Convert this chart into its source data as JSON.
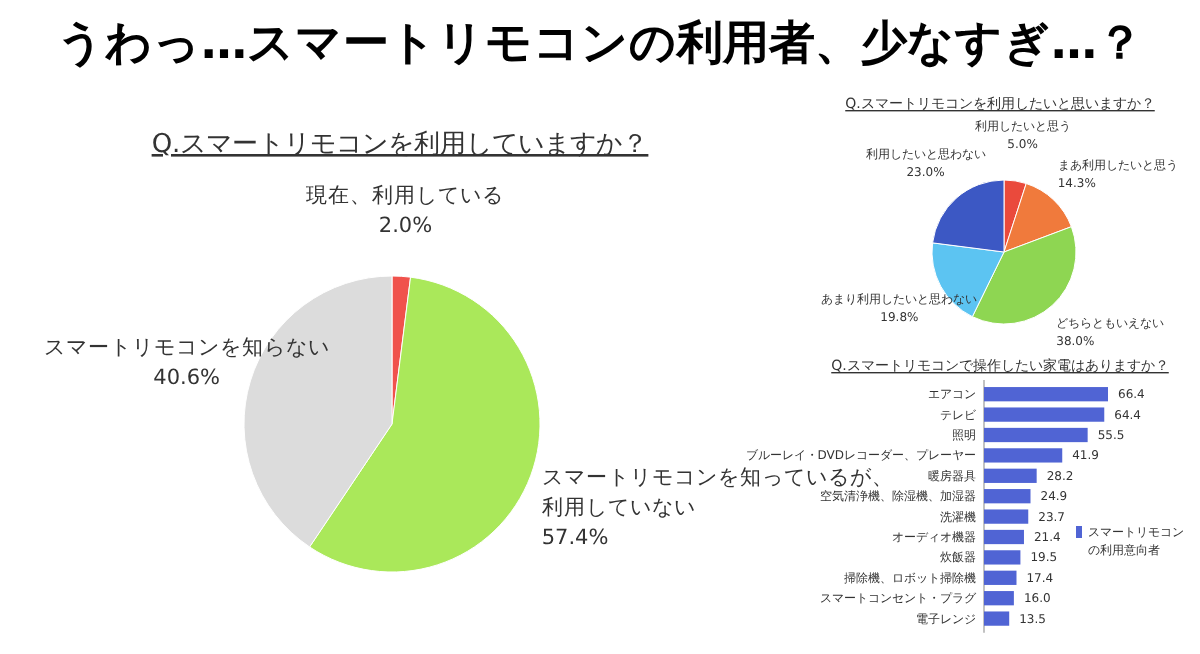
{
  "chart_data": [
    {
      "type": "pie",
      "title": "うわっ…スマートリモコンの利用者、少なすぎ…？",
      "subtitle": "Q.スマートリモコンを利用していますか？",
      "categories": [
        "現在、利用している",
        "スマートリモコンを知っているが、利用していない",
        "スマートリモコンを知らない"
      ],
      "values": [
        2.0,
        57.4,
        40.6
      ],
      "value_labels": [
        "2.0%",
        "57.4%",
        "40.6%"
      ],
      "colors": [
        "#f0524c",
        "#aae85a",
        "#dcdcdc"
      ]
    },
    {
      "type": "pie",
      "title": "Q.スマートリモコンを利用したいと思いますか？",
      "categories": [
        "利用したいと思う",
        "まあ利用したいと思う",
        "どちらともいえない",
        "あまり利用したいと思わない",
        "利用したいと思わない"
      ],
      "values": [
        5.0,
        14.3,
        38.0,
        19.8,
        23.0
      ],
      "value_labels": [
        "5.0%",
        "14.3%",
        "38.0%",
        "19.8%",
        "23.0%"
      ],
      "colors": [
        "#ea4a3c",
        "#f07a3c",
        "#8ed652",
        "#5cc4f2",
        "#3c58c4"
      ]
    },
    {
      "type": "bar",
      "orientation": "horizontal",
      "title": "Q.スマートリモコンで操作したい家電はありますか？",
      "categories": [
        "エアコン",
        "テレビ",
        "照明",
        "ブルーレイ・DVDレコーダー、プレーヤー",
        "暖房器具",
        "空気清浄機、除湿機、加湿器",
        "洗濯機",
        "オーディオ機器",
        "炊飯器",
        "掃除機、ロボット掃除機",
        "スマートコンセント・プラグ",
        "電子レンジ"
      ],
      "series": [
        {
          "name": "スマートリモコンの利用意向者",
          "color": "#5064d4",
          "values": [
            66.4,
            64.4,
            55.5,
            41.9,
            28.2,
            24.9,
            23.7,
            21.4,
            19.5,
            17.4,
            16.0,
            13.5
          ],
          "value_labels": [
            "66.4",
            "64.4",
            "55.5",
            "41.9",
            "28.2",
            "24.9",
            "23.7",
            "21.4",
            "19.5",
            "17.4",
            "16.0",
            "13.5"
          ]
        }
      ],
      "legend": "bottom right"
    }
  ]
}
